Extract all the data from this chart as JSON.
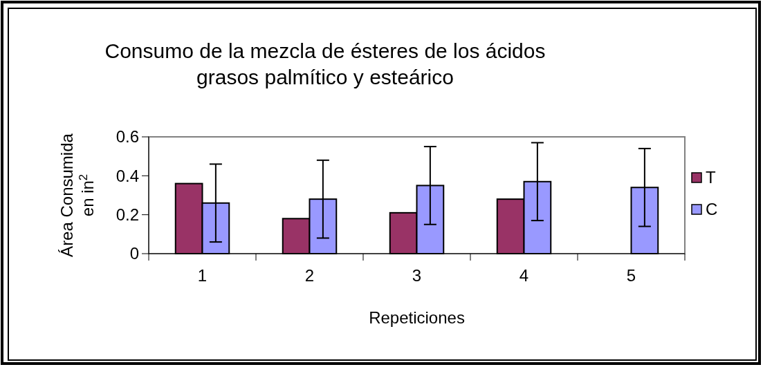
{
  "chart_data": {
    "type": "bar",
    "title": "Consumo de la mezcla de ésteres de los ácidos\ngrasos palmítico y esteárico",
    "xlabel": "Repeticiones",
    "ylabel": "Área Consumida\nen in$^{2}$",
    "categories": [
      "1",
      "2",
      "3",
      "4",
      "5"
    ],
    "series": [
      {
        "name": "T",
        "color": "#993366",
        "values": [
          0.36,
          0.18,
          0.21,
          0.28,
          null
        ]
      },
      {
        "name": "C",
        "color": "#9999ff",
        "values": [
          0.26,
          0.28,
          0.35,
          0.37,
          0.34
        ],
        "errors": [
          0.2,
          0.2,
          0.2,
          0.2,
          0.2
        ]
      }
    ],
    "ylim": [
      0,
      0.6
    ],
    "yticks": [
      0,
      {
        "value": 0.2,
        "label": "0.2"
      },
      {
        "value": 0.4,
        "label": "0.4"
      },
      {
        "value": 0.6,
        "label": "0.6"
      }
    ],
    "grid": false,
    "legend": "right"
  }
}
